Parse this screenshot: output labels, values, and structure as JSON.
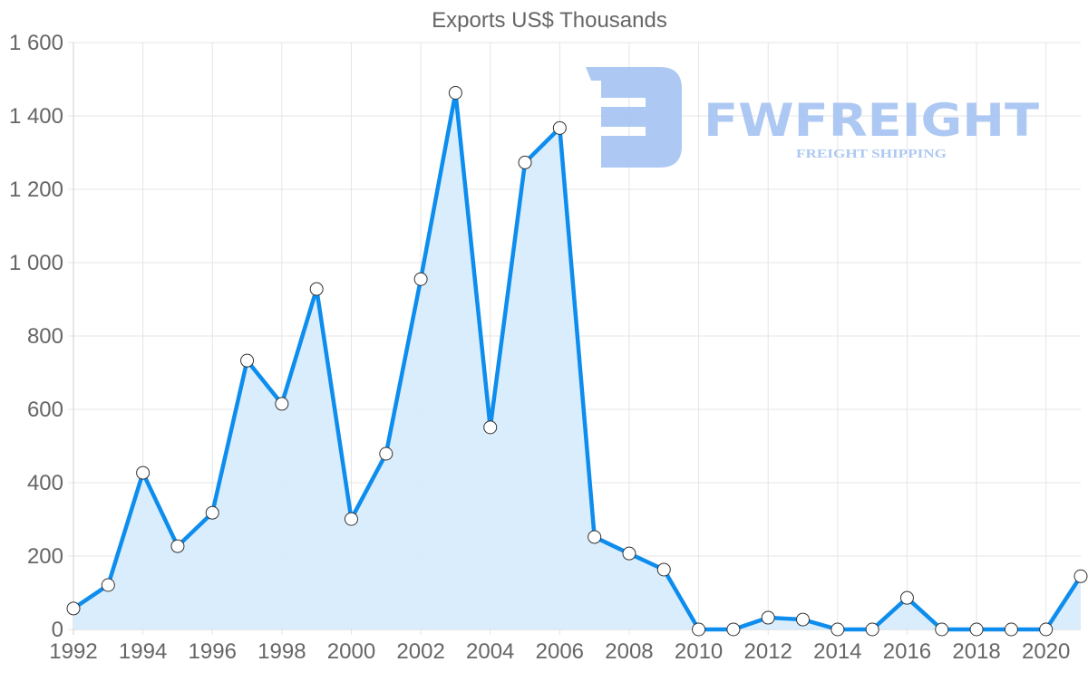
{
  "chart_data": {
    "type": "line",
    "title": "Exports US$ Thousands",
    "xlabel": "",
    "ylabel": "",
    "x": [
      1992,
      1993,
      1994,
      1995,
      1996,
      1997,
      1998,
      1999,
      2000,
      2001,
      2002,
      2003,
      2004,
      2005,
      2006,
      2007,
      2008,
      2009,
      2010,
      2011,
      2012,
      2013,
      2014,
      2015,
      2016,
      2017,
      2018,
      2019,
      2020,
      2021
    ],
    "series": [
      {
        "name": "Exports US$ Thousands",
        "values": [
          57,
          121,
          427,
          227,
          318,
          733,
          615,
          928,
          301,
          479,
          955,
          1463,
          551,
          1273,
          1367,
          252,
          207,
          163,
          0,
          0,
          32,
          27,
          0,
          0,
          86,
          0,
          0,
          0,
          0,
          145
        ],
        "color": "#0d8ded",
        "fill": "#d8ecfc",
        "area": true,
        "markers": true
      }
    ],
    "xlim": [
      1992,
      2021
    ],
    "ylim": [
      0,
      1600
    ],
    "yticks": [
      0,
      200,
      400,
      600,
      800,
      1000,
      1200,
      1400,
      1600
    ],
    "ytick_labels": [
      "0",
      "200",
      "400",
      "600",
      "800",
      "1 000",
      "1 200",
      "1 400",
      "1 600"
    ],
    "xticks": [
      1992,
      1994,
      1996,
      1998,
      2000,
      2002,
      2004,
      2006,
      2008,
      2010,
      2012,
      2014,
      2016,
      2018,
      2020
    ],
    "grid": true,
    "legend": "none"
  },
  "watermark": {
    "brand": "FWFREIGHT",
    "tagline": "FREIGHT SHIPPING",
    "color": "#a9c6f2"
  },
  "colors": {
    "text": "#666666",
    "grid": "#e5e5e5",
    "line": "#0d8ded",
    "area": "#d8ecfc",
    "marker_fill": "#ffffff",
    "marker_stroke": "#333333"
  }
}
